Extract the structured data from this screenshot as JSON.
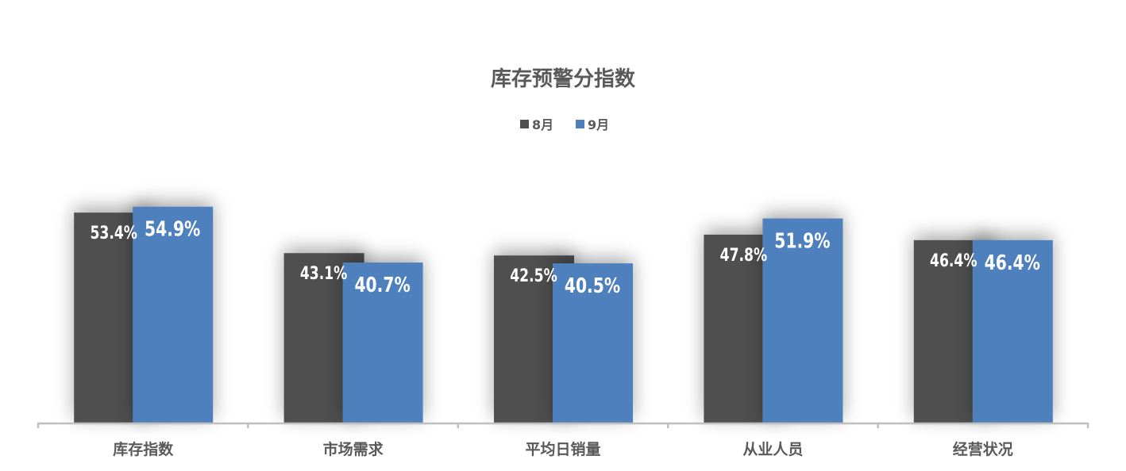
{
  "chart_data": {
    "type": "bar",
    "title": "库存预警分指数",
    "categories": [
      "库存指数",
      "市场需求",
      "平均日销量",
      "从业人员",
      "经营状况"
    ],
    "series": [
      {
        "name": "8月",
        "color": "#4f4f4f",
        "values": [
          53.4,
          43.1,
          42.5,
          47.8,
          46.4
        ],
        "labels": [
          "53.4%",
          "43.1%",
          "42.5%",
          "47.8%",
          "46.4%"
        ]
      },
      {
        "name": "9月",
        "color": "#4e80bc",
        "values": [
          54.9,
          40.7,
          40.5,
          51.9,
          46.4
        ],
        "labels": [
          "54.9%",
          "40.7%",
          "40.5%",
          "51.9%",
          "46.4%"
        ]
      }
    ],
    "ylim": [
      0,
      60
    ],
    "unit": "%",
    "legend": "top",
    "grid": false,
    "value_axis_visible": false
  }
}
